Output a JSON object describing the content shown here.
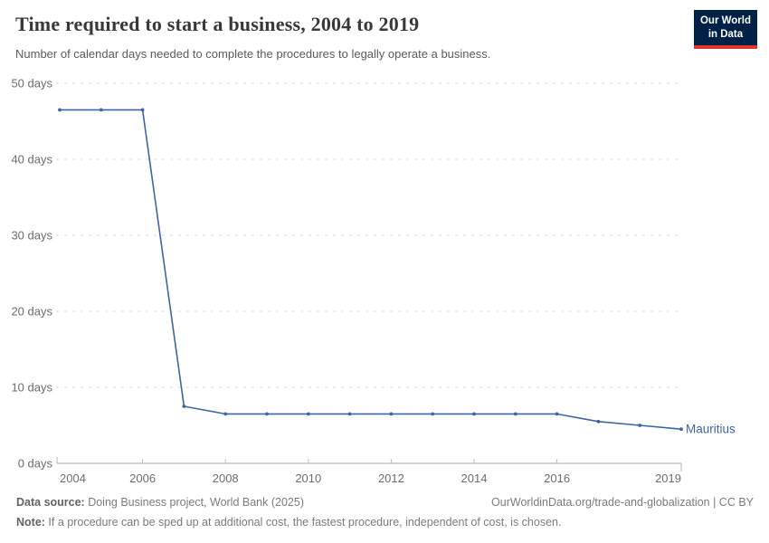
{
  "header": {
    "title": "Time required to start a business, 2004 to 2019",
    "subtitle": "Number of calendar days needed to complete the procedures to legally operate a business.",
    "logo": {
      "line1": "Our World",
      "line2": "in Data",
      "bg_color": "#002147",
      "accent_color": "#e0362c"
    }
  },
  "chart_data": {
    "type": "line",
    "title": "Time required to start a business, 2004 to 2019",
    "entity": "Mauritius",
    "x": [
      2004,
      2005,
      2006,
      2007,
      2008,
      2009,
      2010,
      2011,
      2012,
      2013,
      2014,
      2015,
      2016,
      2017,
      2018,
      2019
    ],
    "series": [
      {
        "name": "Mauritius",
        "color": "#3d64a8",
        "values": [
          46.5,
          46.5,
          46.5,
          7.5,
          6.5,
          6.5,
          6.5,
          6.5,
          6.5,
          6.5,
          6.5,
          6.5,
          6.5,
          5.5,
          5,
          4.5
        ]
      }
    ],
    "xlim": [
      2004,
      2019
    ],
    "ylim": [
      0,
      50
    ],
    "x_ticks": [
      {
        "value": 2004,
        "label": "2004"
      },
      {
        "value": 2006,
        "label": "2006"
      },
      {
        "value": 2008,
        "label": "2008"
      },
      {
        "value": 2010,
        "label": "2010"
      },
      {
        "value": 2012,
        "label": "2012"
      },
      {
        "value": 2014,
        "label": "2014"
      },
      {
        "value": 2016,
        "label": "2016"
      },
      {
        "value": 2019,
        "label": "2019"
      }
    ],
    "y_ticks": [
      {
        "value": 0,
        "label": "0 days"
      },
      {
        "value": 10,
        "label": "10 days"
      },
      {
        "value": 20,
        "label": "20 days"
      },
      {
        "value": 30,
        "label": "30 days"
      },
      {
        "value": 40,
        "label": "40 days"
      },
      {
        "value": 50,
        "label": "50 days"
      }
    ],
    "grid": "horizontal-dashed",
    "legend_position": "end-of-line-label",
    "ylabel": "",
    "xlabel": ""
  },
  "footer": {
    "source_label": "Data source:",
    "source_text": " Doing Business project, World Bank (2025)",
    "attribution": "OurWorldinData.org/trade-and-globalization | CC BY",
    "note_label": "Note:",
    "note_text": " If a procedure can be sped up at additional cost, the fastest procedure, independent of cost, is chosen."
  }
}
